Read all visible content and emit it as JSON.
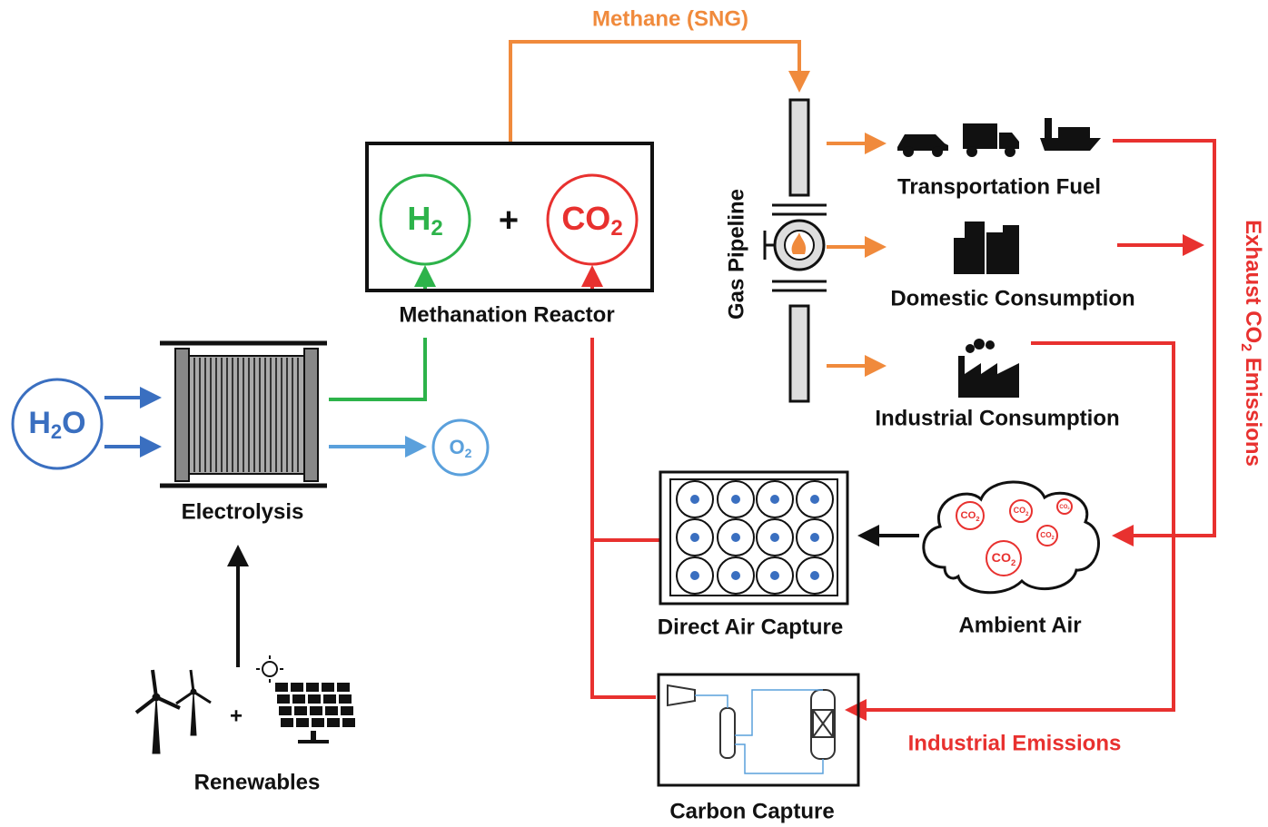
{
  "methane_flow": {
    "label": "Methane (SNG)"
  },
  "reactor": {
    "label": "Methanation Reactor",
    "h2": {
      "base": "H",
      "sub": "2"
    },
    "plus": "+",
    "co2": {
      "base": "CO",
      "sub": "2"
    }
  },
  "pipeline": {
    "label": "Gas Pipeline"
  },
  "uses": [
    {
      "label": "Transportation Fuel"
    },
    {
      "label": "Domestic Consumption"
    },
    {
      "label": "Industrial Consumption"
    }
  ],
  "exhaust": {
    "pre": "Exhaust CO",
    "sub": "2",
    "post": " Emissions"
  },
  "electrolysis": {
    "label": "Electrolysis",
    "input": {
      "base": "H",
      "sub": "2",
      "tail": "O"
    },
    "output": {
      "base": "O",
      "sub": "2"
    }
  },
  "renewables": {
    "label": "Renewables",
    "plus": "+"
  },
  "direct_air_capture": {
    "label": "Direct Air Capture"
  },
  "ambient_air": {
    "label": "Ambient Air",
    "molecules": [
      {
        "base": "CO",
        "sub": "2"
      },
      {
        "base": "CO",
        "sub": "2"
      },
      {
        "base": "CO",
        "sub": "2"
      },
      {
        "base": "CO",
        "sub": "2"
      },
      {
        "base": "CO",
        "sub": "2"
      }
    ]
  },
  "industrial_emissions": {
    "label": "Industrial Emissions"
  },
  "carbon_capture": {
    "label": "Carbon Capture"
  }
}
